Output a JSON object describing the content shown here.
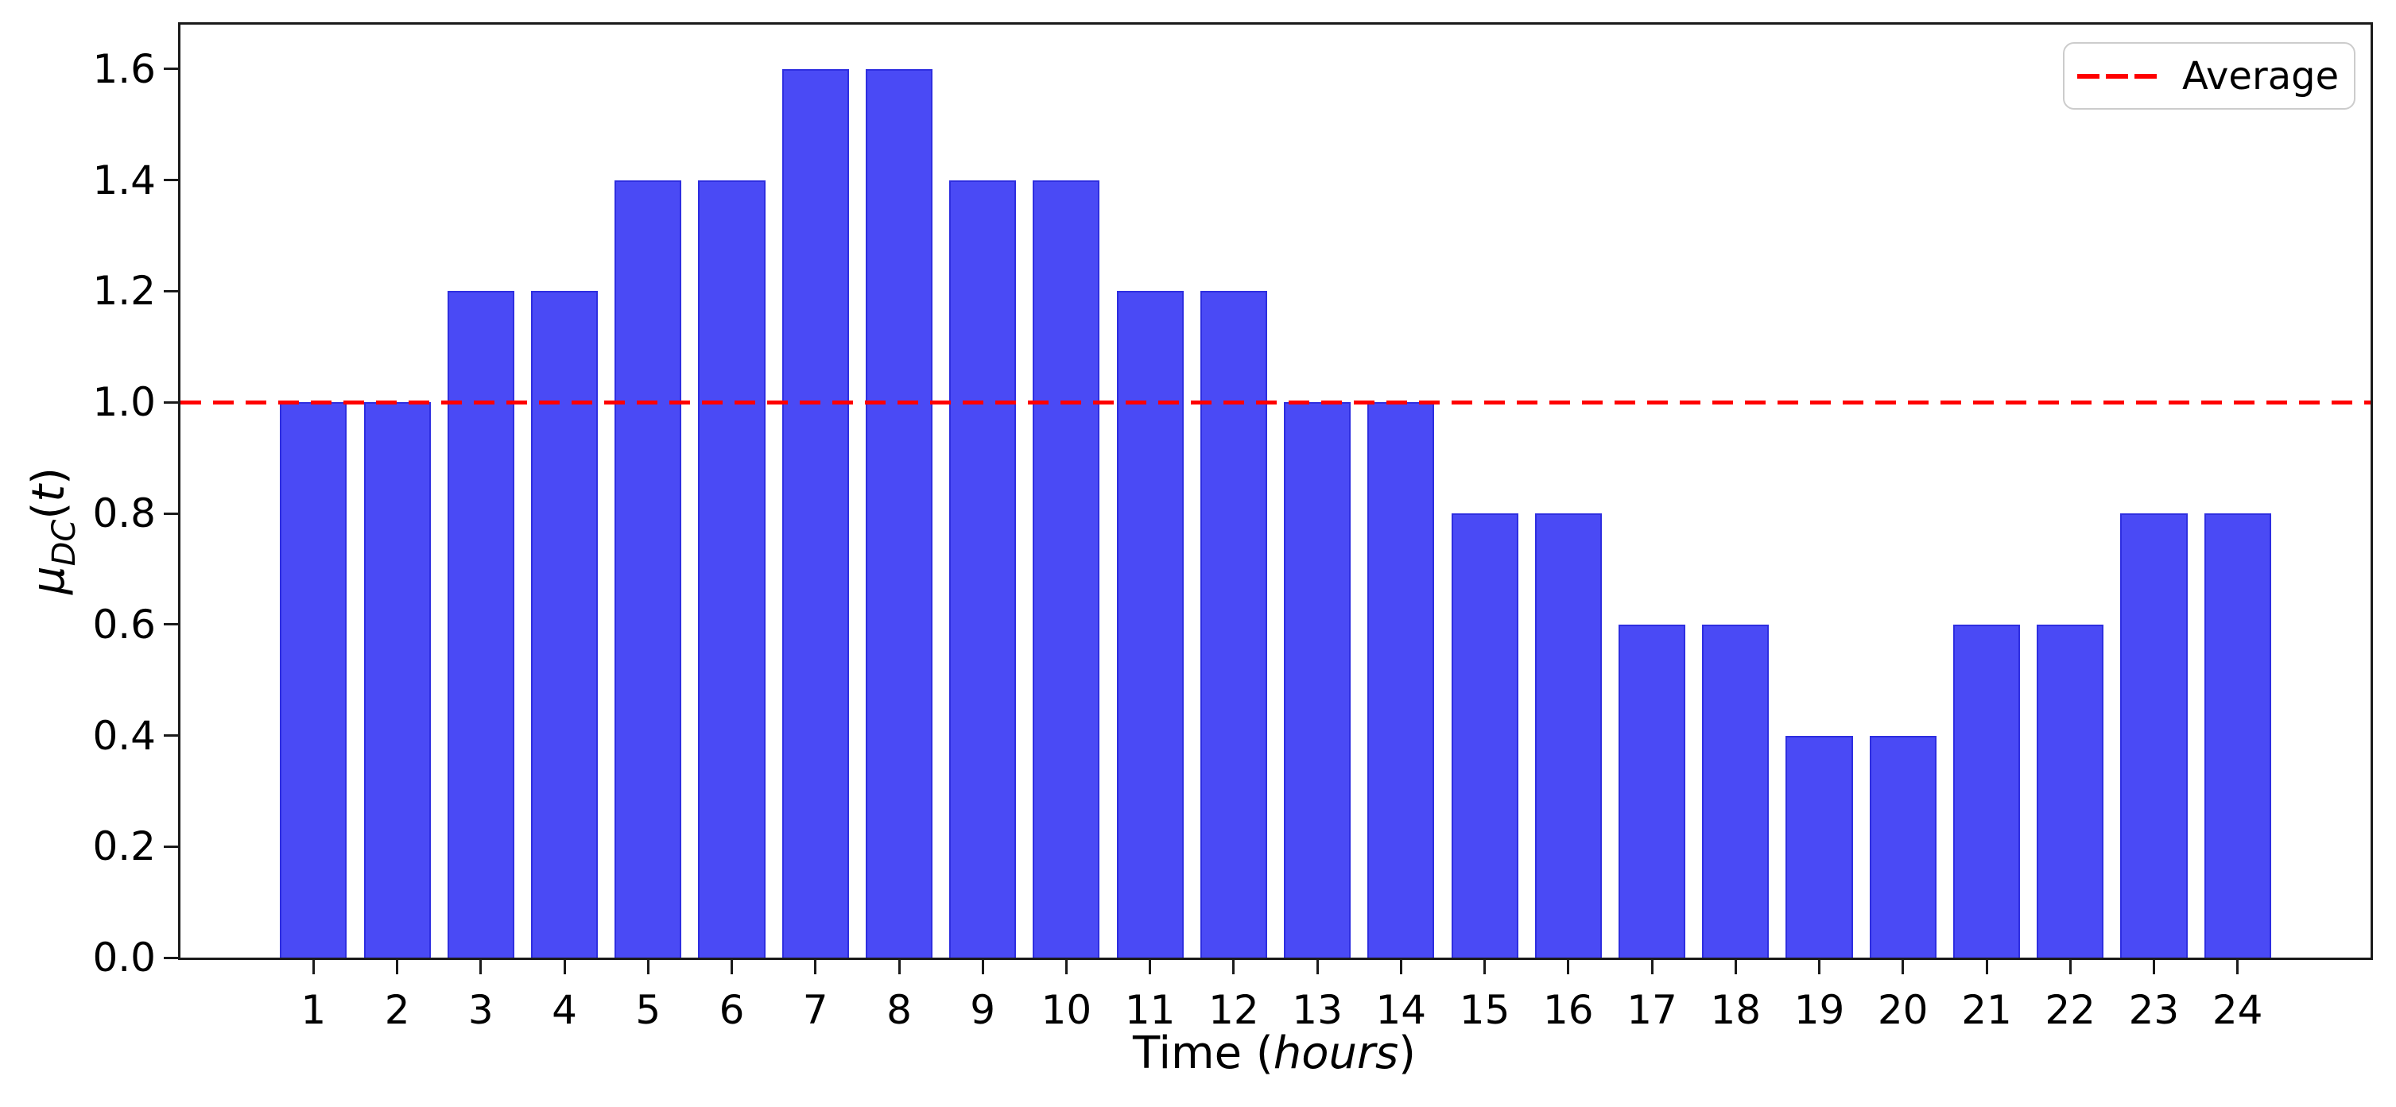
{
  "chart_data": {
    "type": "bar",
    "title": "",
    "xlabel": "Time (hours)",
    "xlabel_parts": {
      "prefix": "Time (",
      "italic": "hours",
      "suffix": ")"
    },
    "ylabel": "μDC(t)",
    "ylabel_parts": {
      "mu": "μ",
      "sub": "DC",
      "open": "(",
      "arg": "t",
      "close": ")"
    },
    "categories": [
      1,
      2,
      3,
      4,
      5,
      6,
      7,
      8,
      9,
      10,
      11,
      12,
      13,
      14,
      15,
      16,
      17,
      18,
      19,
      20,
      21,
      22,
      23,
      24
    ],
    "values": [
      1.0,
      1.0,
      1.2,
      1.2,
      1.4,
      1.4,
      1.6,
      1.6,
      1.4,
      1.4,
      1.2,
      1.2,
      1.0,
      1.0,
      0.8,
      0.8,
      0.6,
      0.6,
      0.4,
      0.4,
      0.6,
      0.6,
      0.8,
      0.8
    ],
    "bar_width": 0.8,
    "xlim": [
      -0.59,
      25.59
    ],
    "ylim": [
      0,
      1.68
    ],
    "ytick_labels": [
      "0.0",
      "0.2",
      "0.4",
      "0.6",
      "0.8",
      "1.0",
      "1.2",
      "1.4",
      "1.6"
    ],
    "ytick_values": [
      0.0,
      0.2,
      0.4,
      0.6,
      0.8,
      1.0,
      1.2,
      1.4,
      1.6
    ],
    "grid": false,
    "average_line": {
      "value": 1.0,
      "style": "dashed",
      "color": "#ff0000"
    },
    "legend": {
      "position": "top-right",
      "entries": [
        {
          "label": "Average",
          "line_style": "dashed",
          "color": "#ff0000"
        }
      ]
    },
    "colors": {
      "bar_fill": "#4a4af5",
      "bar_edge": "#2e2ee0",
      "average_line": "#ff0000",
      "axis": "#1a1a1a",
      "text": "#000000",
      "legend_border": "#cccccc",
      "background": "#ffffff"
    }
  }
}
